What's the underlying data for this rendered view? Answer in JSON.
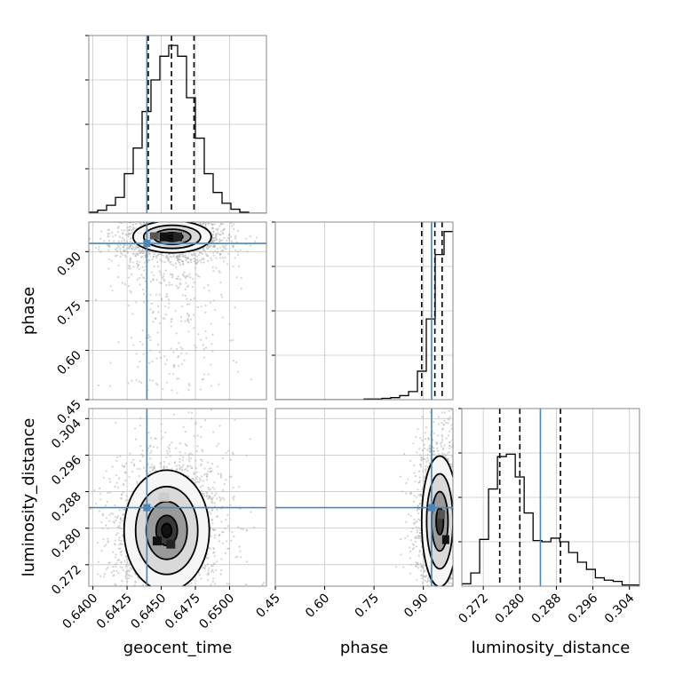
{
  "chart_data": {
    "type": "corner",
    "parameters": [
      "geocent_time",
      "phase",
      "luminosity_distance"
    ],
    "truth": {
      "geocent_time": 0.64395,
      "phase": 0.925,
      "luminosity_distance": 0.2845
    },
    "quantiles": {
      "geocent_time": [
        0.64405,
        0.64575,
        0.6474
      ],
      "phase": [
        0.895,
        0.935,
        0.957
      ],
      "luminosity_distance": [
        0.2756,
        0.28,
        0.2889
      ]
    },
    "axes": {
      "geocent_time": {
        "lim": [
          0.6397,
          0.6527
        ],
        "ticks": [
          0.64,
          0.6425,
          0.645,
          0.6475,
          0.65
        ],
        "tick_labels": [
          "0.6400",
          "0.6425",
          "0.6450",
          "0.6475",
          "0.6500"
        ]
      },
      "phase": {
        "lim": [
          0.45,
          0.99
        ],
        "ticks": [
          0.45,
          0.6,
          0.75,
          0.9
        ],
        "tick_labels": [
          "0.45",
          "0.60",
          "0.75",
          "0.90"
        ]
      },
      "luminosity_distance": {
        "lim": [
          0.2673,
          0.3062
        ],
        "ticks": [
          0.272,
          0.28,
          0.288,
          0.296,
          0.304
        ],
        "tick_labels": [
          "0.272",
          "0.280",
          "0.288",
          "0.296",
          "0.304"
        ]
      }
    },
    "histograms": {
      "geocent_time": {
        "edges": [
          0.6397,
          0.64035,
          0.641,
          0.64165,
          0.6423,
          0.64295,
          0.6436,
          0.64425,
          0.6449,
          0.64555,
          0.6462,
          0.64685,
          0.6475,
          0.64815,
          0.6488,
          0.64945,
          0.6501,
          0.65075,
          0.6514,
          0.65205,
          0.6527
        ],
        "counts": [
          1,
          3,
          8,
          16,
          40,
          66,
          103,
          135,
          159,
          170,
          159,
          117,
          76,
          40,
          21,
          10,
          4,
          1,
          0,
          0
        ]
      },
      "phase": {
        "edges": [
          0.45,
          0.477,
          0.504,
          0.531,
          0.558,
          0.585,
          0.612,
          0.639,
          0.666,
          0.693,
          0.72,
          0.747,
          0.774,
          0.801,
          0.828,
          0.855,
          0.882,
          0.909,
          0.936,
          0.963,
          0.99
        ],
        "counts": [
          0,
          0,
          0,
          0,
          0,
          0,
          0,
          0,
          0,
          0,
          1,
          1,
          2,
          3,
          6,
          12,
          42,
          119,
          214,
          248
        ]
      },
      "luminosity_distance": {
        "edges": [
          0.2673,
          0.26925,
          0.2712,
          0.27315,
          0.2751,
          0.27705,
          0.279,
          0.28095,
          0.2829,
          0.28485,
          0.2868,
          0.28875,
          0.2907,
          0.29265,
          0.2946,
          0.29655,
          0.2985,
          0.30045,
          0.3024,
          0.30435,
          0.3063
        ],
        "counts": [
          2,
          11,
          39,
          81,
          108,
          110,
          91,
          61,
          38,
          37,
          40,
          37,
          28,
          20,
          14,
          7,
          5,
          4,
          1,
          1
        ]
      }
    },
    "contour_centers": {
      "phase_vs_geocent_time": [
        0.6458,
        0.945
      ],
      "luminosity_distance_vs_geocent_time": [
        0.6454,
        0.2795
      ],
      "luminosity_distance_vs_phase": [
        0.95,
        0.2815
      ]
    },
    "grid": true
  }
}
